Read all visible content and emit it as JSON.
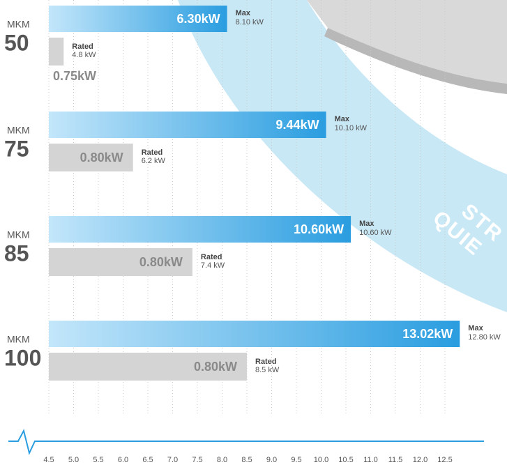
{
  "chart_data": {
    "type": "hbar",
    "category_prefix": "MKM",
    "categories": [
      "50",
      "75",
      "85",
      "100"
    ],
    "series": [
      {
        "name": "Max",
        "color": "#2a9de0",
        "values": [
          8.1,
          10.1,
          10.6,
          12.8
        ],
        "value_labels": [
          "8.10 kW",
          "10.10 kW",
          "10.60 kW",
          "12.80 kW"
        ],
        "inner_labels": [
          "6.30kW",
          "9.44kW",
          "10.60kW",
          "13.02kW"
        ]
      },
      {
        "name": "Rated",
        "color": "#d4d4d4",
        "values": [
          4.8,
          6.2,
          7.4,
          8.5
        ],
        "value_labels": [
          "4.8 kW",
          "6.2 kW",
          "7.4 kW",
          "8.5 kW"
        ],
        "inner_labels": [
          "0.75kW",
          "0.80kW",
          "0.80kW",
          "0.80kW"
        ]
      }
    ],
    "xlim": [
      4.5,
      12.5
    ],
    "xticks": [
      4.5,
      {
        "value": 5,
        "label": "5.0"
      },
      5.5,
      {
        "value": 6,
        "label": "6.0"
      },
      6.5,
      {
        "value": 7,
        "label": "7.0"
      },
      7.5,
      {
        "value": 8,
        "label": "8.0"
      },
      8.5,
      {
        "value": 9,
        "label": "9.0"
      },
      9.5,
      {
        "value": 10,
        "label": "10.0"
      },
      10.5,
      {
        "value": 11,
        "label": "11.0"
      },
      11.5,
      {
        "value": 12,
        "label": "12.0"
      },
      12.5
    ],
    "grid": true,
    "badge_lines": [
      "STR",
      "QUIE"
    ]
  }
}
